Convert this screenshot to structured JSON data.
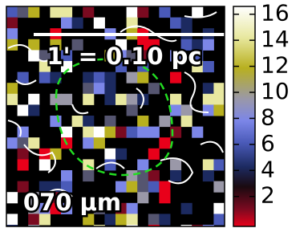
{
  "scale_label": "1' = 0.10 pc",
  "band_label": "070 μm",
  "colorbar": {
    "range": [
      -0.3,
      16.6
    ],
    "ticks": [
      2,
      4,
      6,
      8,
      10,
      12,
      14,
      16
    ]
  }
}
